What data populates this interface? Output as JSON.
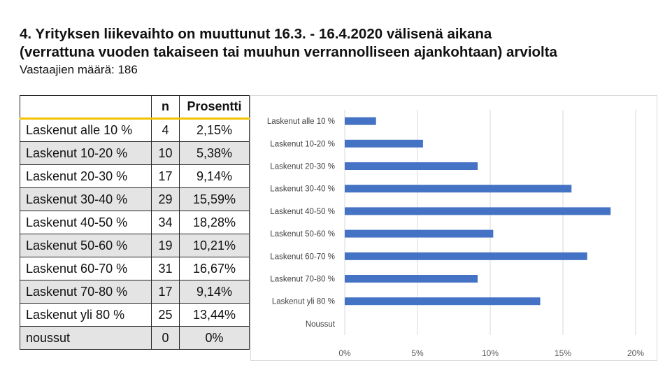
{
  "header": {
    "title_line1": "4. Yrityksen liikevaihto on muuttunut 16.3. - 16.4.2020 välisenä aikana",
    "title_line2": "(verrattuna vuoden takaiseen tai muuhun verrannolliseen ajankohtaan) arviolta",
    "subtitle": "Vastaajien määrä: 186"
  },
  "table": {
    "columns": [
      "",
      "n",
      "Prosentti"
    ],
    "rows": [
      {
        "label": "Laskenut alle 10 %",
        "n": "4",
        "pct": "2,15%"
      },
      {
        "label": "Laskenut 10-20 %",
        "n": "10",
        "pct": "5,38%"
      },
      {
        "label": "Laskenut 20-30 %",
        "n": "17",
        "pct": "9,14%"
      },
      {
        "label": "Laskenut 30-40 %",
        "n": "29",
        "pct": "15,59%"
      },
      {
        "label": "Laskenut 40-50 %",
        "n": "34",
        "pct": "18,28%"
      },
      {
        "label": "Laskenut 50-60 %",
        "n": "19",
        "pct": "10,21%"
      },
      {
        "label": "Laskenut 60-70 %",
        "n": "31",
        "pct": "16,67%"
      },
      {
        "label": "Laskenut 70-80 %",
        "n": "17",
        "pct": "9,14%"
      },
      {
        "label": "Laskenut yli 80 %",
        "n": "25",
        "pct": "13,44%"
      },
      {
        "label": "noussut",
        "n": "0",
        "pct": "0%"
      }
    ]
  },
  "chart_data": {
    "type": "bar",
    "orientation": "horizontal",
    "categories": [
      "Laskenut alle 10 %",
      "Laskenut 10-20 %",
      "Laskenut 20-30 %",
      "Laskenut 30-40 %",
      "Laskenut 40-50 %",
      "Laskenut 50-60 %",
      "Laskenut 60-70 %",
      "Laskenut 70-80 %",
      "Laskenut yli 80 %",
      "Noussut"
    ],
    "values": [
      2.15,
      5.38,
      9.14,
      15.59,
      18.28,
      10.21,
      16.67,
      9.14,
      13.44,
      0
    ],
    "xlim": [
      0,
      20
    ],
    "xticks": [
      "0%",
      "5%",
      "10%",
      "15%",
      "20%"
    ],
    "grid": "vertical",
    "bar_color": "#4472c4",
    "grid_color": "#d9d9d9"
  },
  "colors": {
    "header_underline": "#f2c200",
    "alt_row": "#e4e4e4"
  }
}
